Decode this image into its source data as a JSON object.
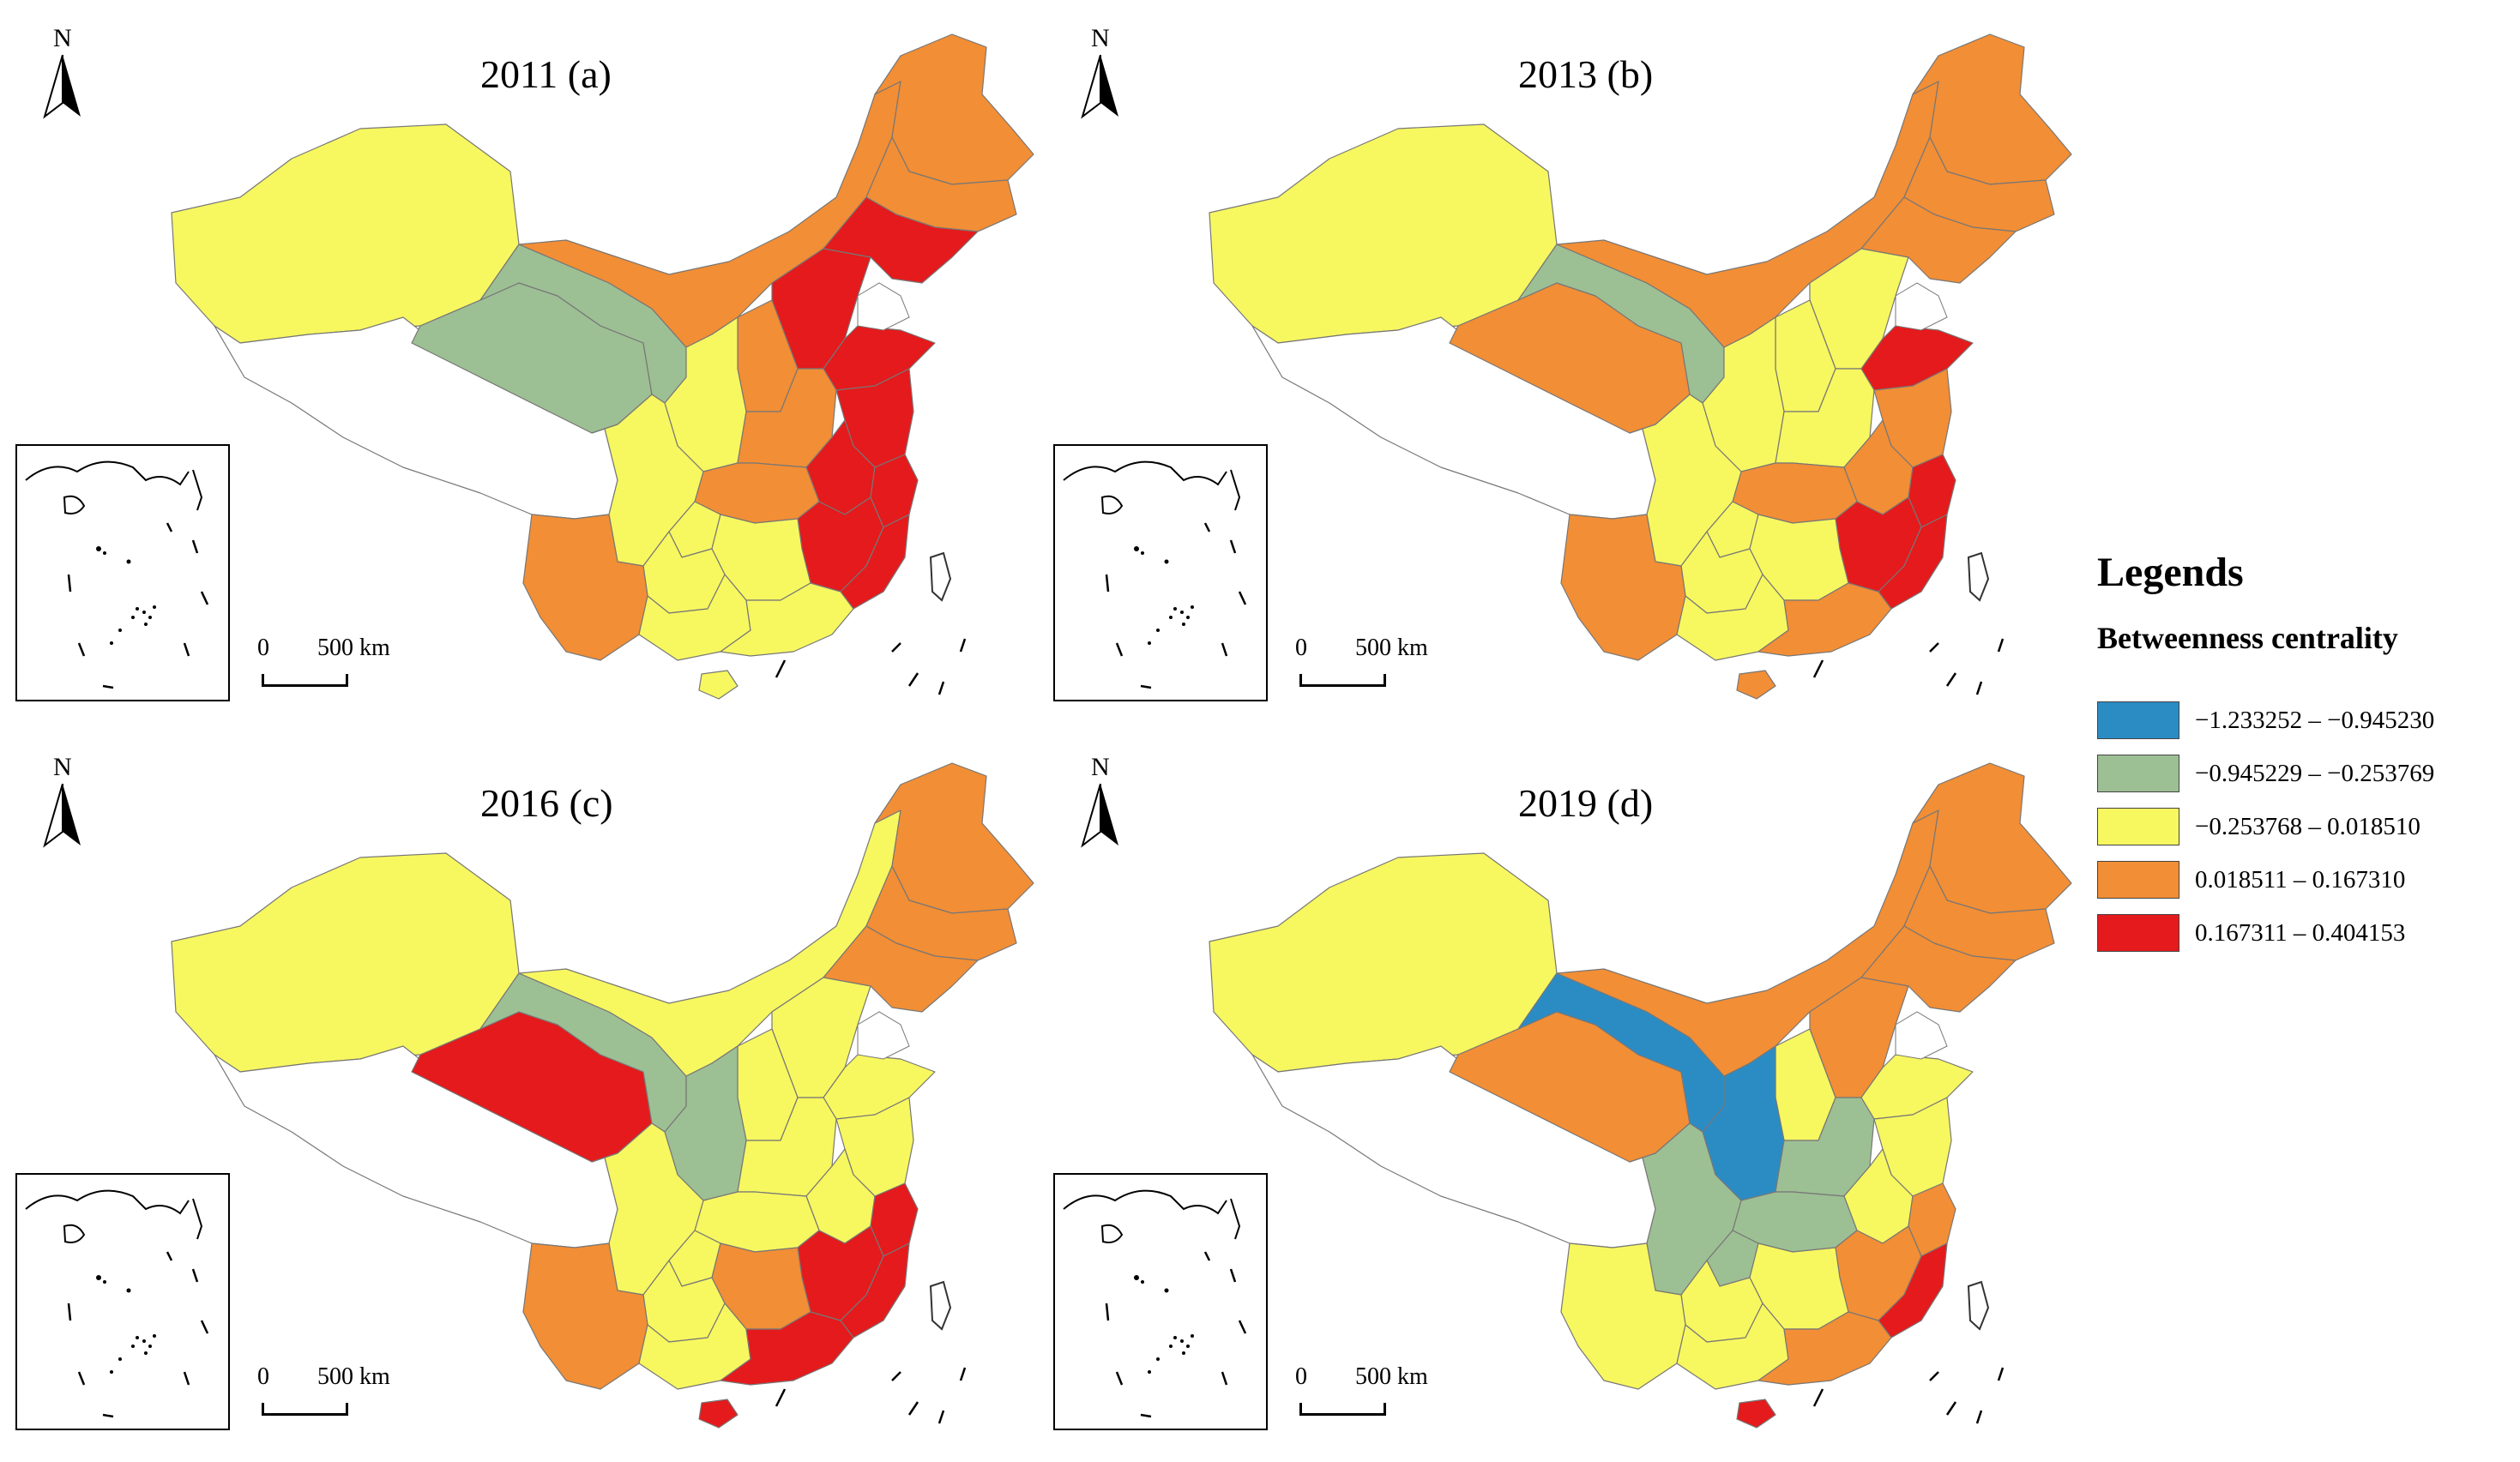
{
  "panels": [
    {
      "title": "2011 (a)",
      "fills": {
        "xinjiang": "yellow",
        "tibet": "white",
        "qinghai": "green",
        "gansu": "green",
        "inner_mongolia": "orange",
        "heilongjiang": "orange",
        "jilin": "orange",
        "liaoning": "red",
        "hebei": "red",
        "shandong": "red",
        "jiangsu": "red",
        "zhejiang": "red",
        "fujian": "red",
        "shanxi": "orange",
        "shaanxi": "yellow",
        "henan": "orange",
        "anhui": "red",
        "hubei": "orange",
        "sichuan": "yellow",
        "chongqing": "yellow",
        "hunan": "yellow",
        "jiangxi": "red",
        "guangdong": "yellow",
        "guangxi": "yellow",
        "guizhou": "yellow",
        "yunnan": "orange",
        "hainan": "yellow"
      }
    },
    {
      "title": "2013 (b)",
      "fills": {
        "xinjiang": "yellow",
        "tibet": "white",
        "qinghai": "orange",
        "gansu": "green",
        "inner_mongolia": "orange",
        "heilongjiang": "orange",
        "jilin": "orange",
        "liaoning": "orange",
        "hebei": "yellow",
        "shandong": "red",
        "jiangsu": "orange",
        "zhejiang": "red",
        "fujian": "red",
        "shanxi": "yellow",
        "shaanxi": "yellow",
        "henan": "yellow",
        "anhui": "orange",
        "hubei": "orange",
        "sichuan": "yellow",
        "chongqing": "yellow",
        "hunan": "yellow",
        "jiangxi": "red",
        "guangdong": "orange",
        "guangxi": "yellow",
        "guizhou": "yellow",
        "yunnan": "orange",
        "hainan": "orange"
      }
    },
    {
      "title": "2016 (c)",
      "fills": {
        "xinjiang": "yellow",
        "tibet": "white",
        "qinghai": "red",
        "gansu": "green",
        "inner_mongolia": "yellow",
        "heilongjiang": "orange",
        "jilin": "orange",
        "liaoning": "orange",
        "hebei": "yellow",
        "shandong": "yellow",
        "jiangsu": "yellow",
        "zhejiang": "red",
        "fujian": "red",
        "shanxi": "yellow",
        "shaanxi": "green",
        "henan": "yellow",
        "anhui": "yellow",
        "hubei": "yellow",
        "sichuan": "yellow",
        "chongqing": "yellow",
        "hunan": "orange",
        "jiangxi": "red",
        "guangdong": "red",
        "guangxi": "yellow",
        "guizhou": "yellow",
        "yunnan": "orange",
        "hainan": "red"
      }
    },
    {
      "title": "2019 (d)",
      "fills": {
        "xinjiang": "yellow",
        "tibet": "white",
        "qinghai": "orange",
        "gansu": "blue",
        "inner_mongolia": "orange",
        "heilongjiang": "orange",
        "jilin": "orange",
        "liaoning": "orange",
        "hebei": "orange",
        "shandong": "yellow",
        "jiangsu": "yellow",
        "zhejiang": "orange",
        "fujian": "red",
        "shanxi": "yellow",
        "shaanxi": "blue",
        "henan": "green",
        "anhui": "yellow",
        "hubei": "green",
        "sichuan": "green",
        "chongqing": "green",
        "hunan": "yellow",
        "jiangxi": "orange",
        "guangdong": "orange",
        "guangxi": "yellow",
        "guizhou": "yellow",
        "yunnan": "yellow",
        "hainan": "red"
      }
    }
  ],
  "north_label": "N",
  "scale": {
    "zero": "0",
    "distance": "500 km"
  },
  "legend": {
    "title": "Legends",
    "subtitle": "Betweenness centrality",
    "classes": [
      {
        "key": "blue",
        "color": "#2b8cc4",
        "label": "−1.233252 – −0.945230"
      },
      {
        "key": "green",
        "color": "#9dbf94",
        "label": "−0.945229 – −0.253769"
      },
      {
        "key": "yellow",
        "color": "#f7f760",
        "label": "−0.253768 – 0.018510"
      },
      {
        "key": "orange",
        "color": "#f28e35",
        "label": "0.018511 – 0.167310"
      },
      {
        "key": "red",
        "color": "#e41a1c",
        "label": "0.167311 – 0.404153"
      }
    ],
    "nodata_color": "#ffffff"
  }
}
